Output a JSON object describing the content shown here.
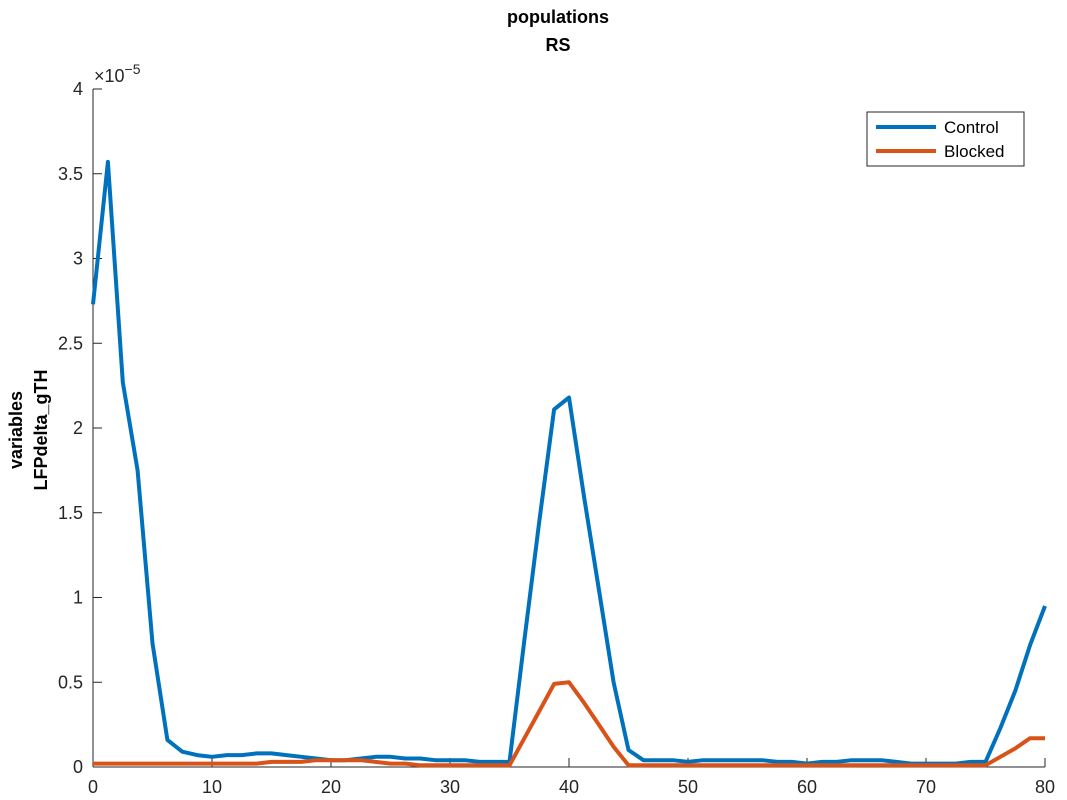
{
  "chart_data": {
    "type": "line",
    "title": "populations",
    "subtitle": "RS",
    "ylabel_line1": "variables",
    "ylabel_line2": "LFPdelta_gTH",
    "xlim": [
      0,
      80
    ],
    "ylim": [
      0,
      4
    ],
    "y_exponent_base": "×10",
    "y_exponent_power": "−5",
    "xticks": [
      0,
      10,
      20,
      30,
      40,
      50,
      60,
      70,
      80
    ],
    "yticks": [
      0,
      0.5,
      1,
      1.5,
      2,
      2.5,
      3,
      3.5,
      4
    ],
    "ytick_labels": [
      "0",
      "0.5",
      "1",
      "1.5",
      "2",
      "2.5",
      "3",
      "3.5",
      "4"
    ],
    "grid": false,
    "legend_position": "top-right",
    "series": [
      {
        "name": "Control",
        "color": "#0072BD",
        "x": [
          0,
          1.25,
          2.5,
          3.75,
          5,
          6.25,
          7.5,
          8.75,
          10,
          11.25,
          12.5,
          13.75,
          15,
          16.25,
          17.5,
          18.75,
          20,
          21.25,
          22.5,
          23.75,
          25,
          26.25,
          27.5,
          28.75,
          30,
          31.25,
          32.5,
          33.75,
          35,
          36.25,
          37.5,
          38.75,
          40,
          41.25,
          42.5,
          43.75,
          45,
          46.25,
          47.5,
          48.75,
          50,
          51.25,
          52.5,
          53.75,
          55,
          56.25,
          57.5,
          58.75,
          60,
          61.25,
          62.5,
          63.75,
          65,
          66.25,
          67.5,
          68.75,
          70,
          71.25,
          72.5,
          73.75,
          75,
          76.25,
          77.5,
          78.75,
          80
        ],
        "y": [
          2.73,
          3.57,
          2.27,
          1.75,
          0.73,
          0.16,
          0.09,
          0.07,
          0.06,
          0.07,
          0.07,
          0.08,
          0.08,
          0.07,
          0.06,
          0.05,
          0.04,
          0.04,
          0.05,
          0.06,
          0.06,
          0.05,
          0.05,
          0.04,
          0.04,
          0.04,
          0.03,
          0.03,
          0.03,
          0.75,
          1.45,
          2.11,
          2.18,
          1.6,
          1.05,
          0.5,
          0.1,
          0.04,
          0.04,
          0.04,
          0.03,
          0.04,
          0.04,
          0.04,
          0.04,
          0.04,
          0.03,
          0.03,
          0.02,
          0.03,
          0.03,
          0.04,
          0.04,
          0.04,
          0.03,
          0.02,
          0.02,
          0.02,
          0.02,
          0.03,
          0.03,
          0.23,
          0.45,
          0.72,
          0.95
        ]
      },
      {
        "name": "Blocked",
        "color": "#D95319",
        "x": [
          0,
          1.25,
          2.5,
          3.75,
          5,
          6.25,
          7.5,
          8.75,
          10,
          11.25,
          12.5,
          13.75,
          15,
          16.25,
          17.5,
          18.75,
          20,
          21.25,
          22.5,
          23.75,
          25,
          26.25,
          27.5,
          28.75,
          30,
          31.25,
          32.5,
          33.75,
          35,
          36.25,
          37.5,
          38.75,
          40,
          41.25,
          42.5,
          43.75,
          45,
          46.25,
          47.5,
          48.75,
          50,
          51.25,
          52.5,
          53.75,
          55,
          56.25,
          57.5,
          58.75,
          60,
          61.25,
          62.5,
          63.75,
          65,
          66.25,
          67.5,
          68.75,
          70,
          71.25,
          72.5,
          73.75,
          75,
          76.25,
          77.5,
          78.75,
          80
        ],
        "y": [
          0.02,
          0.02,
          0.02,
          0.02,
          0.02,
          0.02,
          0.02,
          0.02,
          0.02,
          0.02,
          0.02,
          0.02,
          0.03,
          0.03,
          0.03,
          0.04,
          0.04,
          0.04,
          0.04,
          0.03,
          0.02,
          0.02,
          0.01,
          0.01,
          0.01,
          0.01,
          0.01,
          0.01,
          0.01,
          0.17,
          0.33,
          0.49,
          0.5,
          0.38,
          0.25,
          0.12,
          0.01,
          0.01,
          0.01,
          0.01,
          0.01,
          0.01,
          0.01,
          0.01,
          0.01,
          0.01,
          0.01,
          0.01,
          0.01,
          0.01,
          0.01,
          0.01,
          0.01,
          0.01,
          0.01,
          0.01,
          0.01,
          0.01,
          0.01,
          0.01,
          0.01,
          0.06,
          0.11,
          0.17,
          0.17
        ]
      }
    ]
  }
}
